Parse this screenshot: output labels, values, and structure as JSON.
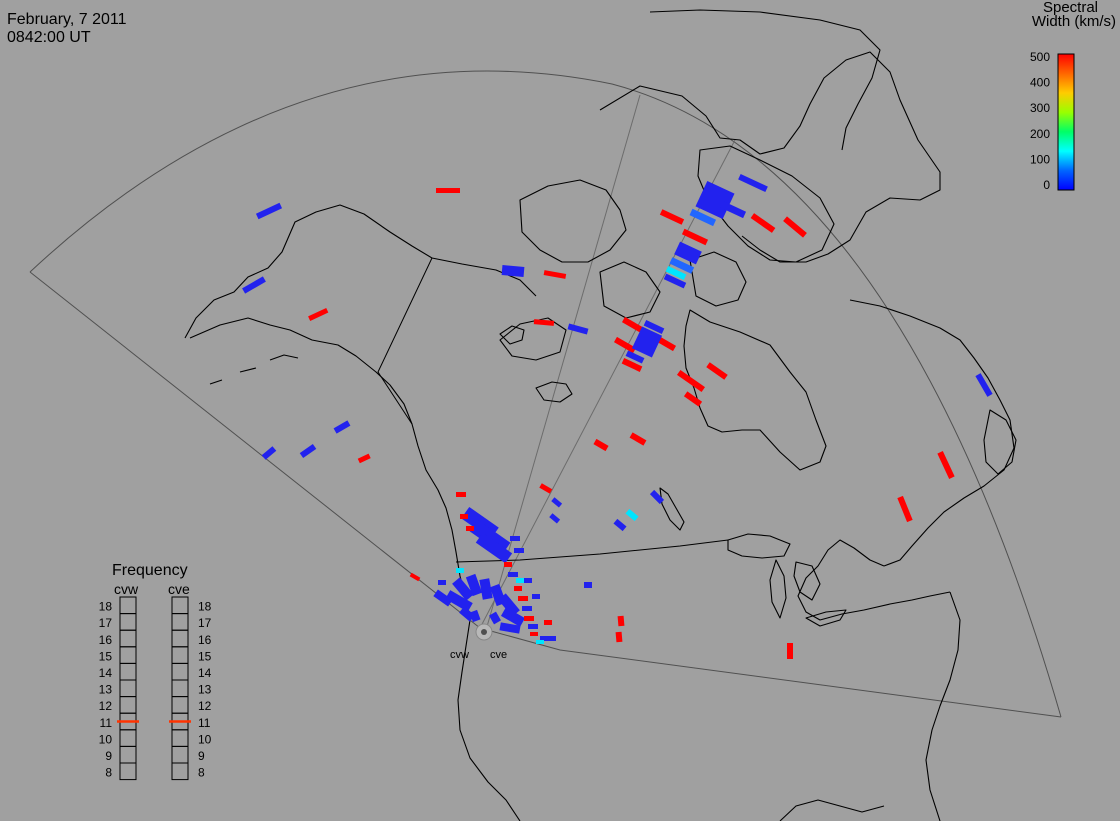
{
  "header": {
    "date": "February, 7 2011",
    "time": "0842:00 UT"
  },
  "legend": {
    "title_line1": "Spectral",
    "title_line2": "Width (km/s)",
    "ticks": [
      "500",
      "400",
      "300",
      "200",
      "100",
      "0"
    ],
    "colors": [
      "#ff0000",
      "#ff6600",
      "#ffcc00",
      "#99ff00",
      "#00ff66",
      "#00ffff",
      "#0066ff",
      "#0000ff"
    ]
  },
  "radars": [
    {
      "code": "cvw",
      "label": "cvw"
    },
    {
      "code": "cve",
      "label": "cve"
    }
  ],
  "frequency": {
    "title": "Frequency",
    "columns": [
      {
        "label": "cvw",
        "value": 11.0
      },
      {
        "label": "cve",
        "value": 11.0
      }
    ],
    "scale": [
      "18",
      "17",
      "16",
      "15",
      "14",
      "13",
      "12",
      "11",
      "10",
      "9",
      "8"
    ],
    "marker_color": "#ff3300"
  },
  "scatter_colors": {
    "red": "#ff0000",
    "blue": "#2222ee",
    "mid_blue": "#2266ff",
    "cyan": "#00e5ff"
  }
}
